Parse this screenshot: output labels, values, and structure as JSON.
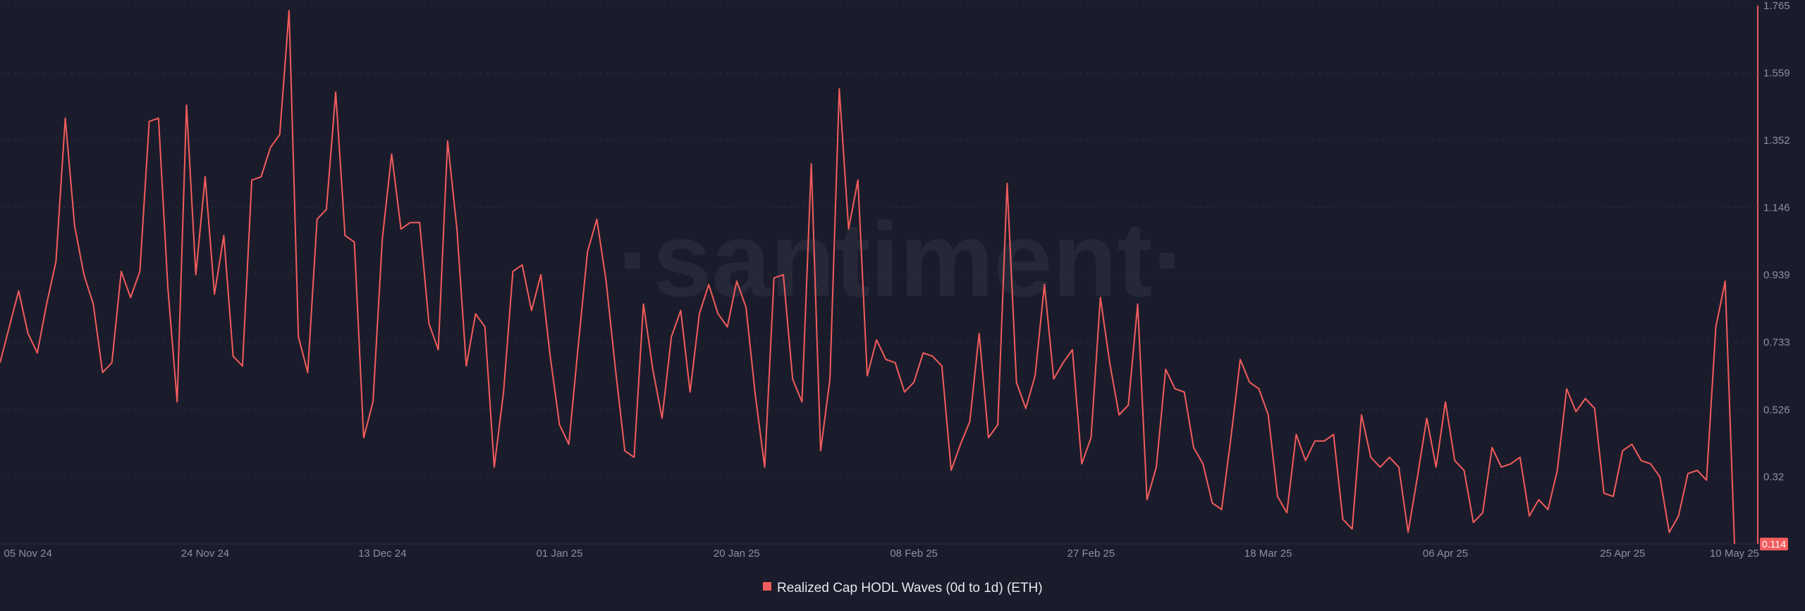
{
  "chart_data": {
    "type": "line",
    "watermark": "·santiment·",
    "categories": [
      null,
      null,
      null,
      "05 Nov 24",
      null,
      null,
      null,
      null,
      null,
      null,
      null,
      null,
      null,
      null,
      null,
      null,
      null,
      null,
      null,
      null,
      null,
      null,
      "24 Nov 24",
      null,
      null,
      null,
      null,
      null,
      null,
      null,
      null,
      null,
      null,
      null,
      null,
      null,
      null,
      null,
      null,
      null,
      null,
      "13 Dec 24",
      null,
      null,
      null,
      null,
      null,
      null,
      null,
      null,
      null,
      null,
      null,
      null,
      null,
      null,
      null,
      null,
      null,
      null,
      "01 Jan 25",
      null,
      null,
      null,
      null,
      null,
      null,
      null,
      null,
      null,
      null,
      null,
      null,
      null,
      null,
      null,
      null,
      null,
      null,
      "20 Jan 25",
      null,
      null,
      null,
      null,
      null,
      null,
      null,
      null,
      null,
      null,
      null,
      null,
      null,
      null,
      null,
      null,
      null,
      null,
      "08 Feb 25",
      null,
      null,
      null,
      null,
      null,
      null,
      null,
      null,
      null,
      null,
      null,
      null,
      null,
      null,
      null,
      null,
      null,
      null,
      "27 Feb 25",
      null,
      null,
      null,
      null,
      null,
      null,
      null,
      null,
      null,
      null,
      null,
      null,
      null,
      null,
      null,
      null,
      null,
      null,
      "18 Mar 25",
      null,
      null,
      null,
      null,
      null,
      null,
      null,
      null,
      null,
      null,
      null,
      null,
      null,
      null,
      null,
      null,
      null,
      null,
      "06 Apr 25",
      null,
      null,
      null,
      null,
      null,
      null,
      null,
      null,
      null,
      null,
      null,
      null,
      null,
      null,
      null,
      null,
      null,
      null,
      "25 Apr 25",
      null,
      null,
      null,
      null,
      null,
      null,
      null,
      null,
      null,
      null,
      null,
      "10 May 25"
    ],
    "series": [
      {
        "name": "Realized Cap HODL Waves (0d to 1d) (ETH)",
        "color": "#f25c5c",
        "values": [
          0.67,
          0.78,
          0.89,
          0.76,
          0.7,
          0.85,
          0.98,
          1.42,
          1.09,
          0.94,
          0.85,
          0.64,
          0.67,
          0.95,
          0.87,
          0.95,
          1.41,
          1.42,
          0.9,
          0.55,
          1.46,
          0.94,
          1.24,
          0.88,
          1.06,
          0.69,
          0.66,
          1.23,
          1.24,
          1.33,
          1.37,
          1.75,
          0.75,
          0.64,
          1.11,
          1.14,
          1.5,
          1.06,
          1.04,
          0.44,
          0.55,
          1.05,
          1.31,
          1.08,
          1.1,
          1.1,
          0.79,
          0.71,
          1.35,
          1.08,
          0.66,
          0.82,
          0.78,
          0.35,
          0.58,
          0.95,
          0.97,
          0.83,
          0.94,
          0.69,
          0.48,
          0.42,
          0.72,
          1.01,
          1.11,
          0.92,
          0.65,
          0.4,
          0.38,
          0.85,
          0.65,
          0.5,
          0.75,
          0.83,
          0.58,
          0.82,
          0.91,
          0.82,
          0.78,
          0.92,
          0.84,
          0.57,
          0.35,
          0.93,
          0.94,
          0.62,
          0.55,
          1.28,
          0.4,
          0.62,
          1.51,
          1.08,
          1.23,
          0.63,
          0.74,
          0.68,
          0.67,
          0.58,
          0.61,
          0.7,
          0.69,
          0.66,
          0.34,
          0.42,
          0.49,
          0.76,
          0.44,
          0.48,
          1.22,
          0.61,
          0.53,
          0.63,
          0.91,
          0.62,
          0.67,
          0.71,
          0.36,
          0.44,
          0.87,
          0.67,
          0.51,
          0.54,
          0.85,
          0.25,
          0.35,
          0.65,
          0.59,
          0.58,
          0.41,
          0.36,
          0.24,
          0.22,
          0.44,
          0.68,
          0.61,
          0.59,
          0.51,
          0.26,
          0.21,
          0.45,
          0.37,
          0.43,
          0.43,
          0.45,
          0.19,
          0.16,
          0.51,
          0.38,
          0.35,
          0.38,
          0.35,
          0.15,
          0.32,
          0.5,
          0.35,
          0.55,
          0.37,
          0.34,
          0.18,
          0.21,
          0.41,
          0.35,
          0.36,
          0.38,
          0.2,
          0.25,
          0.22,
          0.34,
          0.59,
          0.52,
          0.56,
          0.53,
          0.27,
          0.26,
          0.4,
          0.42,
          0.37,
          0.36,
          0.32,
          0.15,
          0.2,
          0.33,
          0.34,
          0.31,
          0.78,
          0.92,
          0.114
        ]
      }
    ],
    "ylim": [
      0.114,
      1.765
    ],
    "yticks": [
      0.32,
      0.526,
      0.733,
      0.939,
      1.146,
      1.352,
      1.559,
      1.765
    ],
    "grid": true
  }
}
